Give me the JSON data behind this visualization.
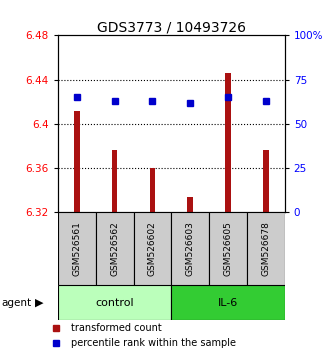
{
  "title": "GDS3773 / 10493726",
  "samples": [
    "GSM526561",
    "GSM526562",
    "GSM526602",
    "GSM526603",
    "GSM526605",
    "GSM526678"
  ],
  "groups": [
    "control",
    "control",
    "control",
    "IL-6",
    "IL-6",
    "IL-6"
  ],
  "transformed_counts": [
    6.412,
    6.376,
    6.36,
    6.334,
    6.446,
    6.376
  ],
  "percentile_ranks": [
    65,
    63,
    63,
    62,
    65,
    63
  ],
  "ylim": [
    6.32,
    6.48
  ],
  "yticks": [
    6.32,
    6.36,
    6.4,
    6.44,
    6.48
  ],
  "right_yticks": [
    0,
    25,
    50,
    75,
    100
  ],
  "bar_color": "#AA1111",
  "dot_color": "#0000CC",
  "control_color": "#BBFFBB",
  "il6_color": "#33CC33",
  "sample_box_color": "#CCCCCC",
  "bar_bottom": 6.32,
  "bar_width": 0.15,
  "legend_bar_label": "transformed count",
  "legend_dot_label": "percentile rank within the sample",
  "agent_label": "agent",
  "title_fontsize": 10,
  "tick_fontsize": 7.5,
  "sample_fontsize": 6.5,
  "group_fontsize": 8,
  "legend_fontsize": 7
}
